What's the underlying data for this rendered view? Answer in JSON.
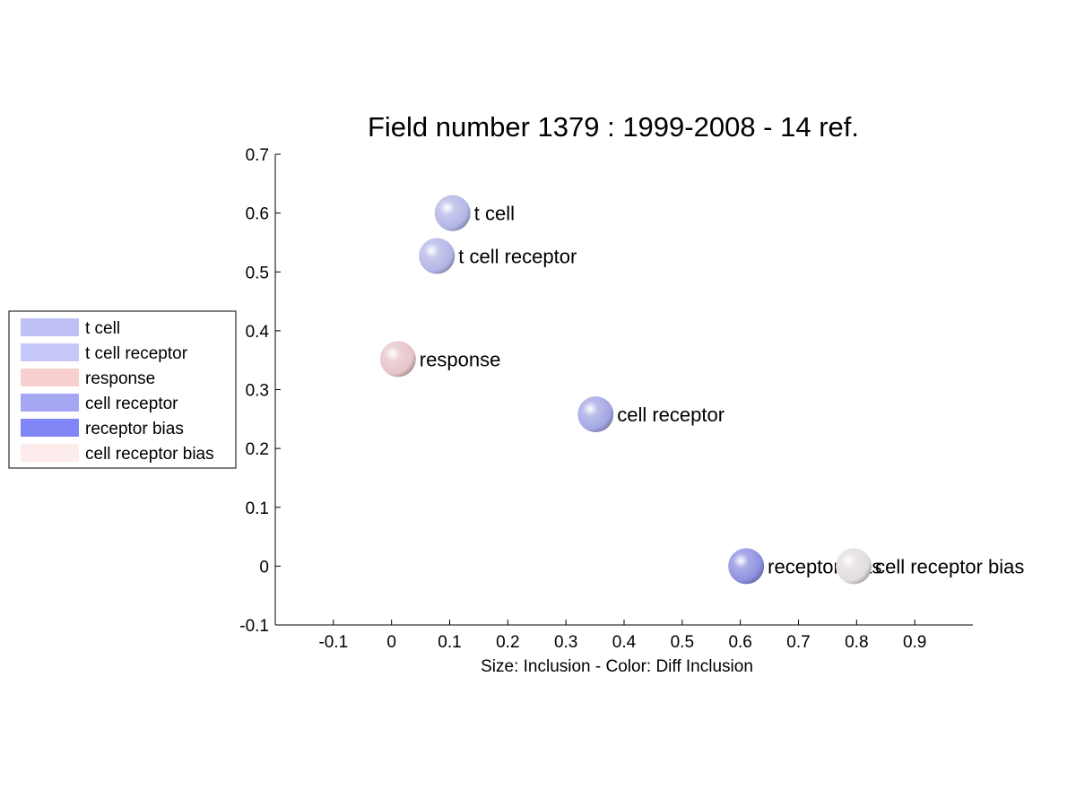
{
  "chart_data": {
    "type": "scatter",
    "title": "Field number 1379 : 1999-2008  - 14 ref.",
    "xlabel": "Size: Inclusion - Color: Diff Inclusion",
    "ylabel": "",
    "xlim": [
      -0.2,
      1.0
    ],
    "ylim": [
      -0.1,
      0.7
    ],
    "xticks": [
      -0.1,
      0,
      0.1,
      0.2,
      0.3,
      0.4,
      0.5,
      0.6,
      0.7,
      0.8,
      0.9
    ],
    "xtick_labels": [
      "-0.1",
      "0",
      "0.1",
      "0.2",
      "0.3",
      "0.4",
      "0.5",
      "0.6",
      "0.7",
      "0.8",
      "0.9"
    ],
    "yticks": [
      -0.1,
      0,
      0.1,
      0.2,
      0.3,
      0.4,
      0.5,
      0.6,
      0.7
    ],
    "ytick_labels": [
      "-0.1",
      "0",
      "0.1",
      "0.2",
      "0.3",
      "0.4",
      "0.5",
      "0.6",
      "0.7"
    ],
    "grid": false,
    "legend_position": "left",
    "points": [
      {
        "label": "t cell",
        "x": 0.105,
        "y": 0.6,
        "color": "#b3b6e6"
      },
      {
        "label": "t cell receptor",
        "x": 0.078,
        "y": 0.527,
        "color": "#b3b6e6"
      },
      {
        "label": "response",
        "x": 0.011,
        "y": 0.352,
        "color": "#e6c4c8"
      },
      {
        "label": "cell receptor",
        "x": 0.351,
        "y": 0.258,
        "color": "#a3a7e3"
      },
      {
        "label": "receptor bias",
        "x": 0.61,
        "y": 0.0,
        "color": "#8c90e0"
      },
      {
        "label": "cell receptor bias",
        "x": 0.795,
        "y": 0.0,
        "color": "#e3dede"
      }
    ],
    "legend": [
      {
        "label": "t cell",
        "color": "#bfc1f5"
      },
      {
        "label": "t cell receptor",
        "color": "#c6c8f7"
      },
      {
        "label": "response",
        "color": "#f8d0d0"
      },
      {
        "label": "cell receptor",
        "color": "#a4a6f2"
      },
      {
        "label": "receptor bias",
        "color": "#8086f5"
      },
      {
        "label": "cell receptor bias",
        "color": "#fcecec"
      }
    ]
  }
}
